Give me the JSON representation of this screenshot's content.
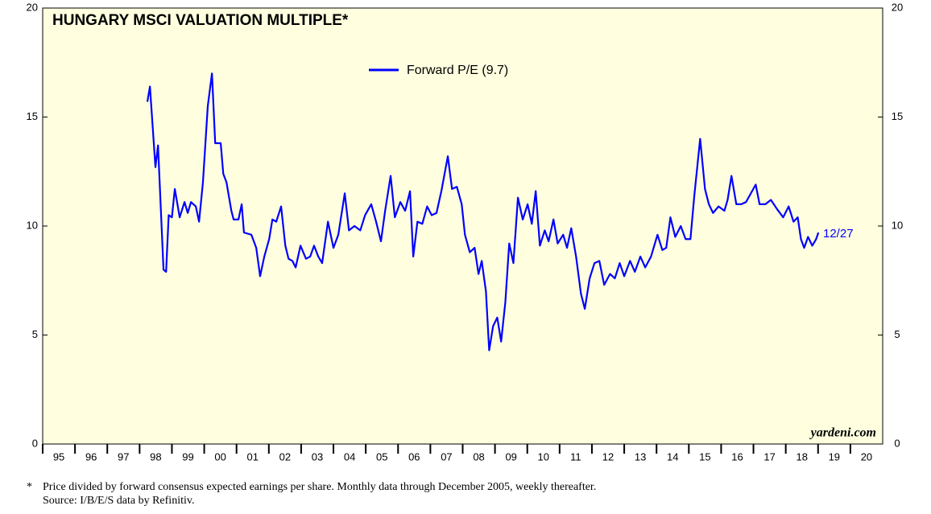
{
  "chart_data": {
    "type": "line",
    "title": "HUNGARY MSCI VALUATION MULTIPLE*",
    "series": [
      {
        "name": "Forward P/E (9.7)",
        "color": "#0000ff",
        "x": [
          1998.24,
          1998.32,
          1998.49,
          1998.57,
          1998.74,
          1998.82,
          1998.9,
          1999.0,
          1999.09,
          1999.24,
          1999.39,
          1999.49,
          1999.59,
          1999.74,
          1999.84,
          1999.96,
          2000.11,
          2000.24,
          2000.34,
          2000.51,
          2000.59,
          2000.69,
          2000.84,
          2000.91,
          2001.06,
          2001.16,
          2001.23,
          2001.46,
          2001.61,
          2001.73,
          2001.86,
          2002.01,
          2002.11,
          2002.23,
          2002.38,
          2002.51,
          2002.61,
          2002.73,
          2002.83,
          2002.98,
          2003.15,
          2003.28,
          2003.4,
          2003.53,
          2003.65,
          2003.83,
          2004.0,
          2004.15,
          2004.35,
          2004.48,
          2004.65,
          2004.83,
          2004.98,
          2005.17,
          2005.32,
          2005.47,
          2005.6,
          2005.77,
          2005.9,
          2006.07,
          2006.22,
          2006.37,
          2006.47,
          2006.6,
          2006.75,
          2006.9,
          2007.04,
          2007.19,
          2007.34,
          2007.54,
          2007.67,
          2007.82,
          2007.97,
          2008.07,
          2008.22,
          2008.37,
          2008.49,
          2008.59,
          2008.72,
          2008.82,
          2008.94,
          2009.07,
          2009.19,
          2009.32,
          2009.44,
          2009.57,
          2009.71,
          2009.86,
          2010.01,
          2010.14,
          2010.26,
          2010.39,
          2010.54,
          2010.66,
          2010.81,
          2010.94,
          2011.11,
          2011.23,
          2011.36,
          2011.51,
          2011.66,
          2011.78,
          2011.93,
          2012.08,
          2012.23,
          2012.38,
          2012.56,
          2012.71,
          2012.86,
          2013.0,
          2013.18,
          2013.33,
          2013.5,
          2013.65,
          2013.83,
          2014.03,
          2014.18,
          2014.3,
          2014.43,
          2014.58,
          2014.75,
          2014.9,
          2015.05,
          2015.17,
          2015.35,
          2015.5,
          2015.62,
          2015.75,
          2015.92,
          2016.1,
          2016.2,
          2016.32,
          2016.47,
          2016.62,
          2016.77,
          2016.92,
          2017.07,
          2017.19,
          2017.37,
          2017.54,
          2017.72,
          2017.92,
          2018.09,
          2018.24,
          2018.37,
          2018.47,
          2018.57,
          2018.69,
          2018.82,
          2018.94,
          2019.01
        ],
        "values": [
          15.7,
          16.4,
          12.7,
          13.7,
          8.0,
          7.9,
          10.5,
          10.4,
          11.7,
          10.4,
          11.1,
          10.6,
          11.1,
          10.9,
          10.2,
          12.0,
          15.5,
          17.0,
          13.8,
          13.8,
          12.4,
          12.0,
          10.7,
          10.3,
          10.3,
          11.0,
          9.7,
          9.6,
          9.0,
          7.7,
          8.6,
          9.4,
          10.3,
          10.2,
          10.9,
          9.1,
          8.5,
          8.4,
          8.1,
          9.1,
          8.5,
          8.6,
          9.1,
          8.6,
          8.3,
          10.2,
          9.0,
          9.6,
          11.5,
          9.8,
          10.0,
          9.8,
          10.5,
          11.0,
          10.2,
          9.3,
          10.7,
          12.3,
          10.4,
          11.1,
          10.7,
          11.6,
          8.6,
          10.2,
          10.1,
          10.9,
          10.5,
          10.6,
          11.6,
          13.2,
          11.7,
          11.8,
          11.0,
          9.6,
          8.8,
          9.0,
          7.8,
          8.4,
          7.0,
          4.3,
          5.4,
          5.8,
          4.7,
          6.5,
          9.2,
          8.3,
          11.3,
          10.3,
          11.0,
          10.1,
          11.6,
          9.1,
          9.8,
          9.3,
          10.3,
          9.2,
          9.6,
          9.0,
          9.9,
          8.6,
          6.9,
          6.2,
          7.6,
          8.3,
          8.4,
          7.3,
          7.8,
          7.6,
          8.3,
          7.7,
          8.4,
          7.9,
          8.6,
          8.1,
          8.6,
          9.6,
          8.9,
          9.0,
          10.4,
          9.5,
          10.0,
          9.4,
          9.4,
          11.4,
          14.0,
          11.7,
          11.0,
          10.6,
          10.9,
          10.7,
          11.2,
          12.3,
          11.0,
          11.0,
          11.1,
          11.5,
          11.9,
          11.0,
          11.0,
          11.2,
          10.8,
          10.4,
          10.9,
          10.2,
          10.4,
          9.4,
          9.0,
          9.5,
          9.1,
          9.4,
          9.7
        ]
      }
    ],
    "ylim": [
      0,
      20
    ],
    "yticks": [
      0,
      5,
      10,
      15,
      20
    ],
    "y2lim": [
      0,
      20
    ],
    "y2ticks": [
      0,
      5,
      10,
      15,
      20
    ],
    "xlim": [
      1995,
      2021
    ],
    "xticks": [
      {
        "value": 1995,
        "label": "95"
      },
      {
        "value": 1996,
        "label": "96"
      },
      {
        "value": 1997,
        "label": "97"
      },
      {
        "value": 1998,
        "label": "98"
      },
      {
        "value": 1999,
        "label": "99"
      },
      {
        "value": 2000,
        "label": "00"
      },
      {
        "value": 2001,
        "label": "01"
      },
      {
        "value": 2002,
        "label": "02"
      },
      {
        "value": 2003,
        "label": "03"
      },
      {
        "value": 2004,
        "label": "04"
      },
      {
        "value": 2005,
        "label": "05"
      },
      {
        "value": 2006,
        "label": "06"
      },
      {
        "value": 2007,
        "label": "07"
      },
      {
        "value": 2008,
        "label": "08"
      },
      {
        "value": 2009,
        "label": "09"
      },
      {
        "value": 2010,
        "label": "10"
      },
      {
        "value": 2011,
        "label": "11"
      },
      {
        "value": 2012,
        "label": "12"
      },
      {
        "value": 2013,
        "label": "13"
      },
      {
        "value": 2014,
        "label": "14"
      },
      {
        "value": 2015,
        "label": "15"
      },
      {
        "value": 2016,
        "label": "16"
      },
      {
        "value": 2017,
        "label": "17"
      },
      {
        "value": 2018,
        "label": "18"
      },
      {
        "value": 2019,
        "label": "19"
      },
      {
        "value": 2020,
        "label": "20"
      }
    ],
    "background": "#ffffe0",
    "annotations": {
      "end_label": "12/27",
      "brand": "yardeni.com"
    },
    "footnote": {
      "marker": "*",
      "lines": [
        "Price divided by forward consensus expected earnings per share. Monthly data through December 2005, weekly thereafter.",
        "Source: I/B/E/S data by Refinitiv."
      ]
    }
  }
}
